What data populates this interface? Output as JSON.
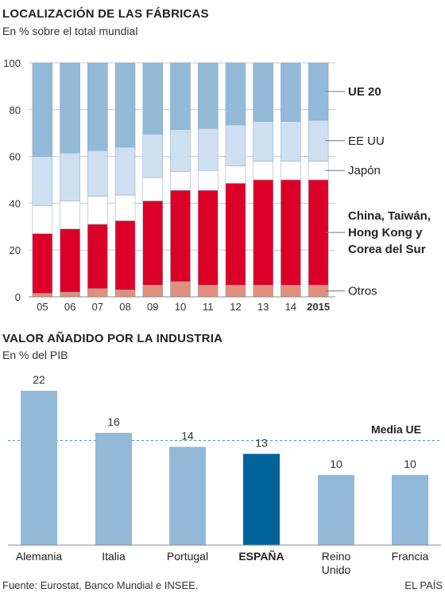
{
  "chart_data": [
    {
      "type": "bar",
      "stacked": true,
      "title": "LOCALIZACIÓN DE LAS FÁBRICAS",
      "subtitle": "En % sobre el total mundial",
      "categories": [
        "05",
        "06",
        "07",
        "08",
        "09",
        "10",
        "11",
        "12",
        "13",
        "14",
        "2015"
      ],
      "highlight_category": "2015",
      "ylim": [
        0,
        100
      ],
      "yticks": [
        0,
        20,
        40,
        60,
        80,
        100
      ],
      "grid": true,
      "legend": "right",
      "series": [
        {
          "name": "Otros",
          "color": "#e0907c",
          "bold": false,
          "values": [
            1.5,
            2,
            3.5,
            3,
            5,
            6.5,
            5,
            5,
            5,
            5,
            5
          ]
        },
        {
          "name": "China, Taiwán, Hong Kong y Corea del Sur",
          "label_lines": [
            "China, Taiwán,",
            "Hong Kong y",
            "Corea del Sur"
          ],
          "color": "#dc0028",
          "bold": true,
          "values": [
            25.5,
            27,
            27.5,
            29.5,
            36,
            39,
            40.5,
            43.5,
            45,
            45,
            45
          ]
        },
        {
          "name": "Japón",
          "color": "#ffffff",
          "bold": false,
          "values": [
            12,
            12,
            12,
            11,
            10,
            8,
            8.5,
            7.5,
            8,
            8,
            8
          ]
        },
        {
          "name": "EE UU",
          "color": "#cddff0",
          "bold": false,
          "values": [
            21,
            20.5,
            19.5,
            20.5,
            18.5,
            18,
            18,
            17.5,
            17,
            17,
            17.5
          ]
        },
        {
          "name": "UE 20",
          "color": "#93b9d8",
          "bold": true,
          "values": [
            40,
            38.5,
            37.5,
            36,
            30.5,
            28.5,
            28,
            26.5,
            25,
            25,
            24.5
          ]
        }
      ]
    },
    {
      "type": "bar",
      "title": "VALOR AÑADIDO POR LA INDUSTRIA",
      "subtitle": "En % del PIB",
      "categories": [
        "Alemania",
        "Italia",
        "Portugal",
        "ESPAÑA",
        "Reino Unido",
        "Francia"
      ],
      "category_lines": [
        [
          "Alemania"
        ],
        [
          "Italia"
        ],
        [
          "Portugal"
        ],
        [
          "ESPAÑA"
        ],
        [
          "Reino",
          "Unido"
        ],
        [
          "Francia"
        ]
      ],
      "values": [
        22,
        16,
        14,
        13,
        10,
        10
      ],
      "highlight_category": "ESPAÑA",
      "bar_color": "#93b9d8",
      "highlight_color": "#00639b",
      "reference_line": {
        "label": "Media UE",
        "value": 14.9,
        "color": "#3a8fb7"
      }
    }
  ],
  "footer": {
    "source": "Fuente: Eurostat, Banco Mundial e INSEE.",
    "credit": "EL PAÍS"
  }
}
